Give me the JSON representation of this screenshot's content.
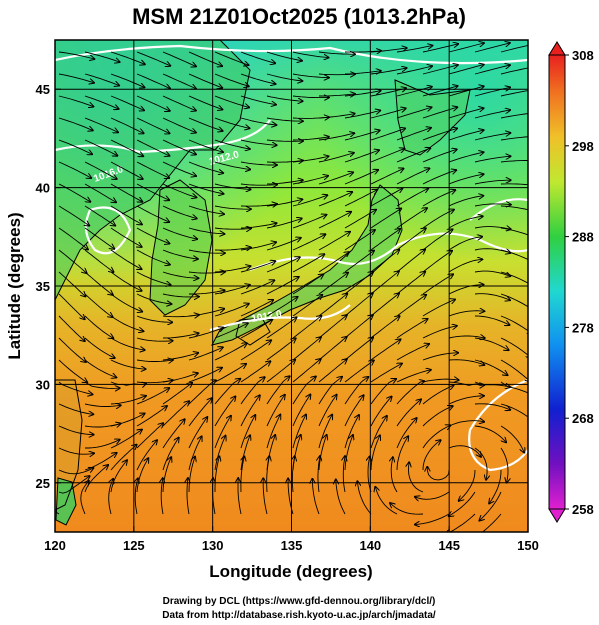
{
  "title": "MSM 21Z01Oct2025 (1013.2hPa)",
  "xlabel": "Longitude (degrees)",
  "ylabel": "Latitude  (degrees)",
  "x_ticks": [
    "120",
    "125",
    "130",
    "135",
    "140",
    "145",
    "150"
  ],
  "y_ticks": [
    "25",
    "30",
    "35",
    "40",
    "45"
  ],
  "colorbar": {
    "ticks": [
      "308",
      "298",
      "288",
      "278",
      "268",
      "258"
    ],
    "min": 258,
    "max": 308
  },
  "contour_labels": [
    "1016.0",
    "1012.0",
    "1012.0"
  ],
  "credits": {
    "line1": "Drawing by DCL (https://www.gfd-dennou.org/library/dcl/)",
    "line2": "Data from http://database.rish.kyoto-u.ac.jp/arch/jmadata/"
  },
  "map_data": {
    "lon_range": [
      120,
      150
    ],
    "lat_range": [
      22.5,
      47.5
    ],
    "grid_lon": [
      125,
      130,
      135,
      140,
      145
    ],
    "grid_lat": [
      25,
      30,
      35,
      40,
      45
    ],
    "colors": {
      "warm": "#f08a1e",
      "mid": "#9ae634",
      "cool": "#2fd8b0",
      "land_dark": "#30c060",
      "line": "#000000",
      "contour": "#ffffff"
    }
  }
}
